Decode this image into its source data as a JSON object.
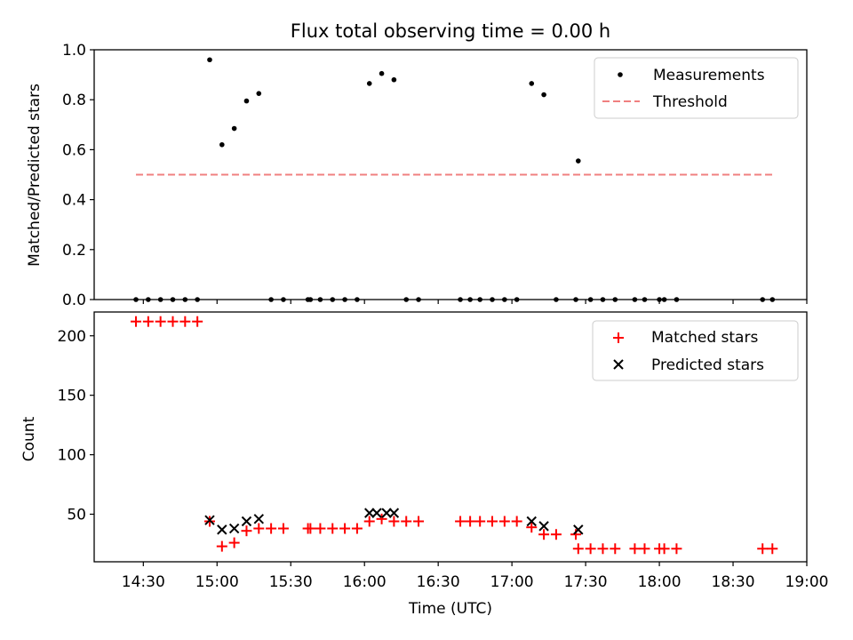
{
  "chart_data": [
    {
      "type": "scatter",
      "title": "Flux total observing time = 0.00 h",
      "xlabel": "",
      "ylabel": "Matched/Predicted stars",
      "xlim": [
        "14:10",
        "19:00"
      ],
      "ylim": [
        0,
        1.0
      ],
      "yticks": [
        0.0,
        0.2,
        0.4,
        0.6,
        0.8,
        1.0
      ],
      "ytick_labels": [
        "0.0",
        "0.2",
        "0.4",
        "0.6",
        "0.8",
        "1.0"
      ],
      "grid": false,
      "legend_position": "top-right",
      "legend": [
        "Measurements",
        "Threshold"
      ],
      "series": [
        {
          "name": "Measurements",
          "color": "#000000",
          "marker": "dot",
          "x": [
            "14:27",
            "14:32",
            "14:37",
            "14:42",
            "14:47",
            "14:52",
            "14:57",
            "15:02",
            "15:07",
            "15:12",
            "15:17",
            "15:22",
            "15:27",
            "15:37",
            "15:38",
            "15:42",
            "15:47",
            "15:52",
            "15:57",
            "16:02",
            "16:07",
            "16:12",
            "16:17",
            "16:22",
            "16:39",
            "16:43",
            "16:47",
            "16:52",
            "16:57",
            "17:02",
            "17:08",
            "17:13",
            "17:18",
            "17:26",
            "17:27",
            "17:32",
            "17:37",
            "17:42",
            "17:50",
            "17:54",
            "18:00",
            "18:02",
            "18:07",
            "18:42",
            "18:46"
          ],
          "y": [
            0,
            0,
            0,
            0,
            0,
            0,
            0.96,
            0.62,
            0.685,
            0.795,
            0.825,
            0,
            0,
            0,
            0,
            0,
            0,
            0,
            0,
            0.865,
            0.905,
            0.88,
            0,
            0,
            0,
            0,
            0,
            0,
            0,
            0,
            0.865,
            0.82,
            0,
            0,
            0.555,
            0,
            0,
            0,
            0,
            0,
            0,
            0,
            0,
            0,
            0
          ]
        },
        {
          "name": "Threshold",
          "color": "#f08080",
          "style": "dashed",
          "x": [
            "14:27",
            "18:46"
          ],
          "y": [
            0.5,
            0.5
          ]
        }
      ]
    },
    {
      "type": "scatter",
      "xlabel": "Time (UTC)",
      "ylabel": "Count",
      "xlim": [
        "14:10",
        "19:00"
      ],
      "ylim": [
        10,
        220
      ],
      "yticks": [
        50,
        100,
        150,
        200
      ],
      "ytick_labels": [
        "50",
        "100",
        "150",
        "200"
      ],
      "xticks": [
        "14:30",
        "15:00",
        "15:30",
        "16:00",
        "16:30",
        "17:00",
        "17:30",
        "18:00",
        "18:30",
        "19:00"
      ],
      "grid": false,
      "legend_position": "top-right",
      "legend": [
        "Matched stars",
        "Predicted stars"
      ],
      "series": [
        {
          "name": "Matched stars",
          "color": "#ff0000",
          "marker": "plus",
          "x": [
            "14:27",
            "14:32",
            "14:37",
            "14:42",
            "14:47",
            "14:52",
            "14:57",
            "15:02",
            "15:07",
            "15:12",
            "15:17",
            "15:22",
            "15:27",
            "15:37",
            "15:38",
            "15:42",
            "15:47",
            "15:52",
            "15:57",
            "16:02",
            "16:07",
            "16:12",
            "16:17",
            "16:22",
            "16:39",
            "16:43",
            "16:47",
            "16:52",
            "16:57",
            "17:02",
            "17:08",
            "17:13",
            "17:18",
            "17:26",
            "17:27",
            "17:32",
            "17:37",
            "17:42",
            "17:50",
            "17:54",
            "18:00",
            "18:02",
            "18:07",
            "18:42",
            "18:46"
          ],
          "y": [
            212,
            212,
            212,
            212,
            212,
            212,
            44,
            23,
            26,
            36,
            38,
            38,
            38,
            38,
            38,
            38,
            38,
            38,
            38,
            44,
            46,
            44,
            44,
            44,
            44,
            44,
            44,
            44,
            44,
            44,
            39,
            33,
            33,
            33,
            21,
            21,
            21,
            21,
            21,
            21,
            21,
            21,
            21,
            21,
            21
          ]
        },
        {
          "name": "Predicted stars",
          "color": "#000000",
          "marker": "x",
          "x": [
            "14:57",
            "15:02",
            "15:07",
            "15:12",
            "15:17",
            "16:02",
            "16:05",
            "16:09",
            "16:12",
            "17:08",
            "17:13",
            "17:27"
          ],
          "y": [
            45,
            37,
            38,
            44,
            46,
            51,
            51,
            51,
            51,
            44,
            40,
            37
          ]
        }
      ]
    }
  ]
}
